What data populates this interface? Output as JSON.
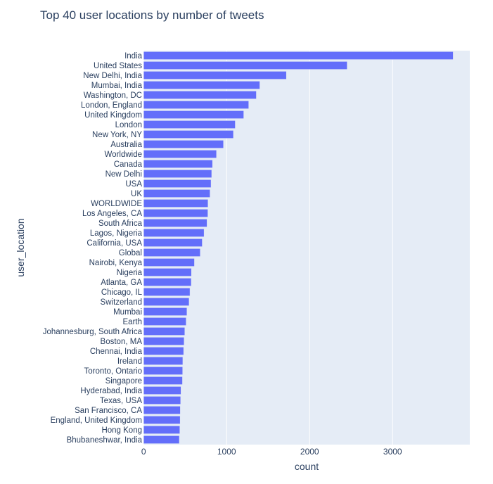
{
  "chart_data": {
    "type": "bar",
    "orientation": "horizontal",
    "title": "Top 40 user locations by number of tweets",
    "xlabel": "count",
    "ylabel": "user_location",
    "xlim": [
      -2,
      3930
    ],
    "x_ticks": [
      0,
      1000,
      2000,
      3000
    ],
    "grid": true,
    "bar_color": "#636efa",
    "plot_background": "#e5ecf6",
    "categories": [
      "India",
      "United States",
      "New Delhi, India",
      "Mumbai, India",
      "Washington, DC",
      "London, England",
      "United Kingdom",
      "London",
      "New York, NY",
      "Australia",
      "Worldwide",
      "Canada",
      "New Delhi",
      "USA",
      "UK",
      "WORLDWIDE",
      "Los Angeles, CA",
      "South Africa",
      "Lagos, Nigeria",
      "California, USA",
      "Global",
      "Nairobi, Kenya",
      "Nigeria",
      "Atlanta, GA",
      "Chicago, IL",
      "Switzerland",
      "Mumbai",
      "Earth",
      "Johannesburg, South Africa",
      "Boston, MA",
      "Chennai, India",
      "Ireland",
      "Toronto, Ontario",
      "Singapore",
      "Hyderabad, India",
      "Texas, USA",
      "San Francisco, CA",
      "England, United Kingdom",
      "Hong Kong",
      "Bhubaneshwar, India"
    ],
    "values": [
      3730,
      2452,
      1720,
      1400,
      1358,
      1266,
      1206,
      1104,
      1082,
      962,
      878,
      830,
      820,
      812,
      800,
      776,
      774,
      764,
      728,
      706,
      682,
      612,
      576,
      574,
      558,
      548,
      522,
      512,
      496,
      488,
      482,
      472,
      470,
      468,
      450,
      446,
      442,
      440,
      436,
      430
    ]
  }
}
